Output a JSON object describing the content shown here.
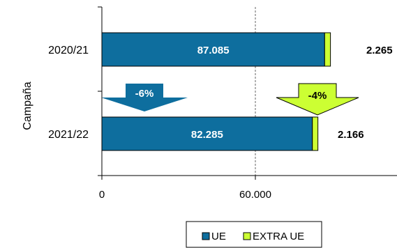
{
  "chart_data": {
    "type": "bar",
    "orientation": "horizontal",
    "stacked": true,
    "title": "",
    "xlabel": "",
    "ylabel": "Campaña",
    "categories": [
      "2020/21",
      "2021/22"
    ],
    "series": [
      {
        "name": "UE",
        "values": [
          87085,
          82285
        ],
        "color": "#0E6E9E",
        "labels": [
          "87.085",
          "82.285"
        ]
      },
      {
        "name": "EXTRA UE",
        "values": [
          2265,
          2166
        ],
        "color": "#CCFF33",
        "labels": [
          "2.265",
          "2.166"
        ]
      }
    ],
    "xlim": [
      0,
      120000
    ],
    "x_ticks": [
      0,
      60000
    ],
    "x_tick_labels": [
      "0",
      "60.000"
    ],
    "grid": "vertical dashed at 60.000",
    "legend": {
      "position": "bottom",
      "entries": [
        "UE",
        "EXTRA UE"
      ]
    },
    "annotations": [
      {
        "text": "-6%",
        "arrow": "down",
        "color": "#0E6E9E",
        "series": "UE"
      },
      {
        "text": "-4%",
        "arrow": "down",
        "color": "#CCFF33",
        "series": "EXTRA UE"
      }
    ]
  }
}
